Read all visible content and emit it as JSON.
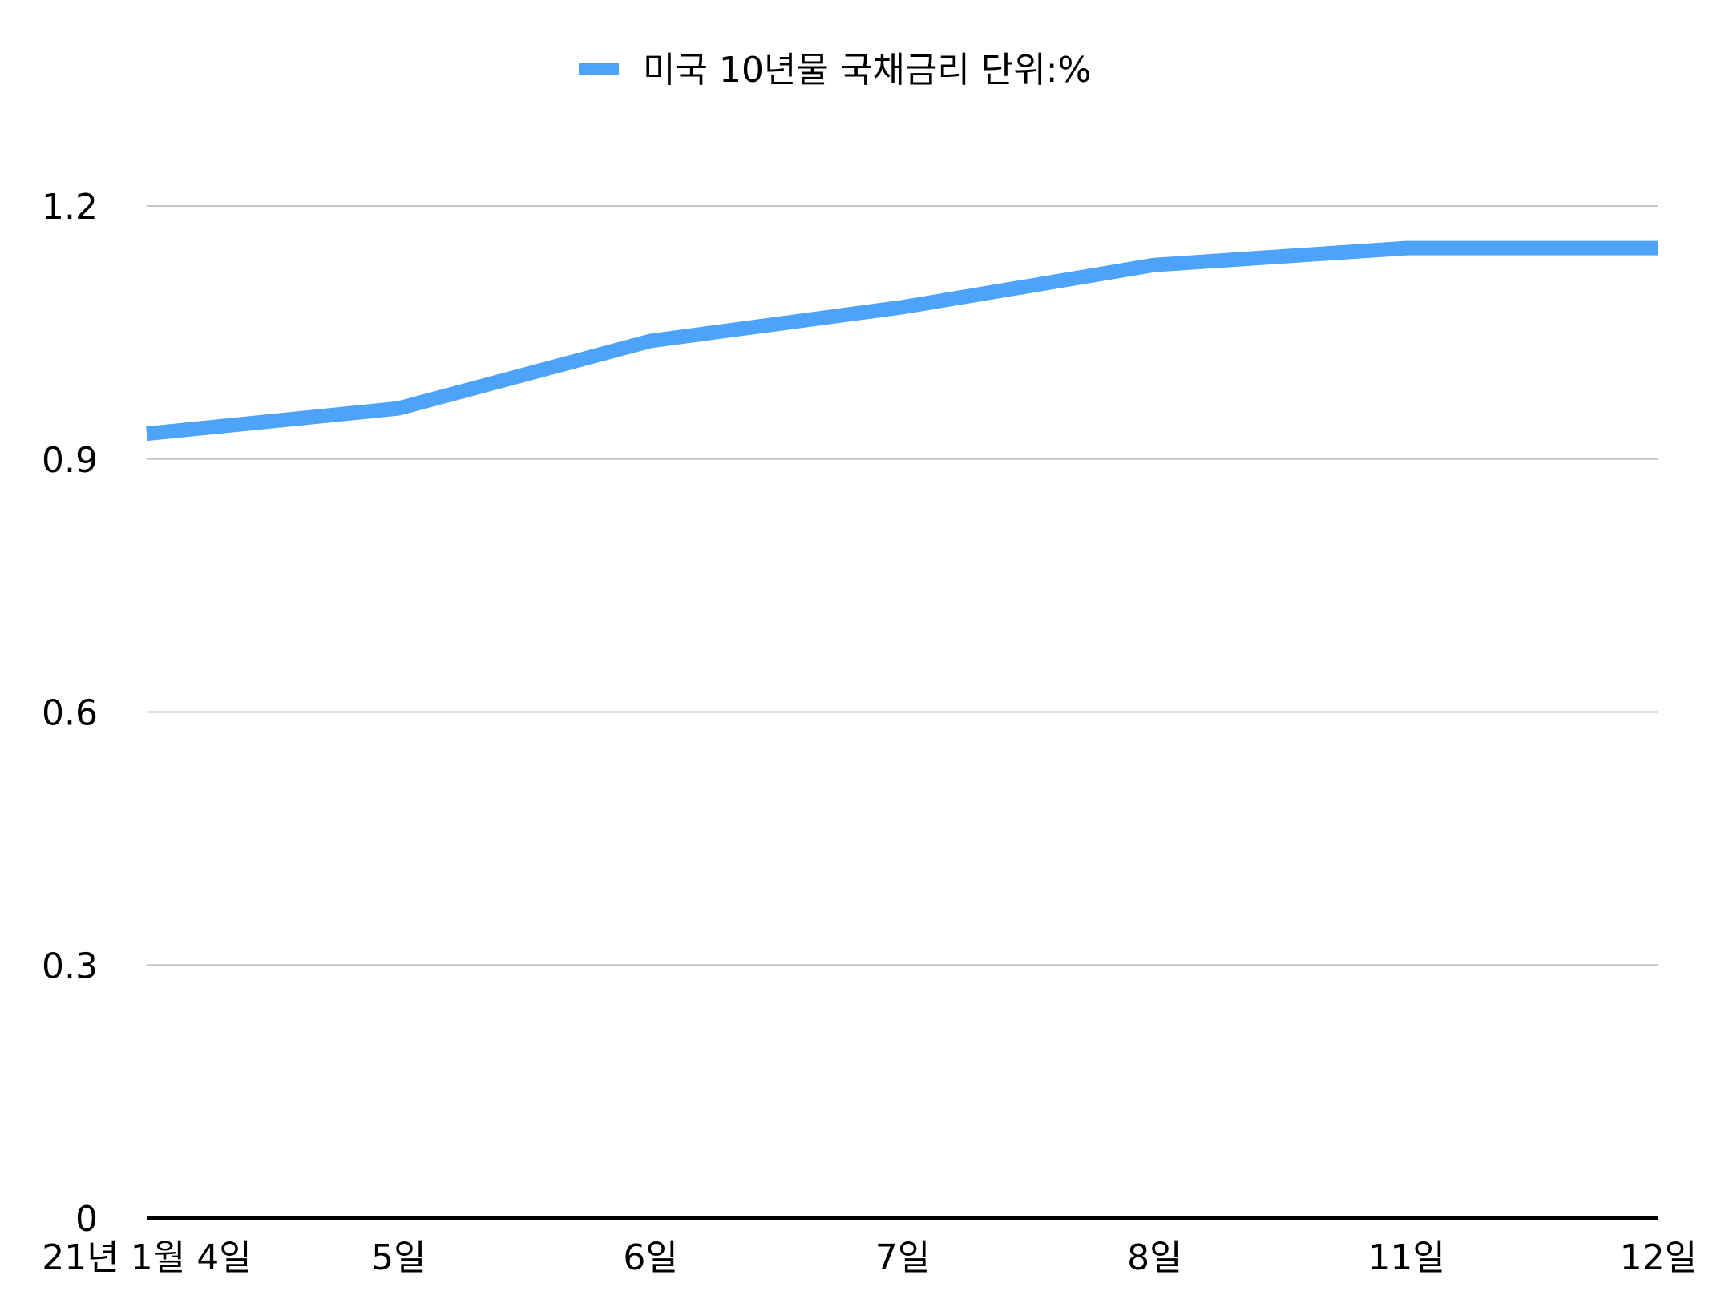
{
  "colors": {
    "series": "#4da3f7",
    "grid": "#c4c4c4",
    "axis": "#000000"
  },
  "chart_data": {
    "type": "line",
    "title": "",
    "xlabel": "",
    "ylabel": "",
    "categories": [
      "21년 1월 4일",
      "5일",
      "6일",
      "7일",
      "8일",
      "11일",
      "12일"
    ],
    "series": [
      {
        "name": "미국 10년물 국채금리 단위:%",
        "color": "#4da3f7",
        "values": [
          0.93,
          0.96,
          1.04,
          1.08,
          1.13,
          1.15,
          1.15
        ]
      }
    ],
    "ylim": [
      0,
      1.2
    ],
    "yticks": [
      "0",
      "0.3",
      "0.6",
      "0.9",
      "1.2"
    ],
    "grid": true,
    "legend": "top-center"
  }
}
